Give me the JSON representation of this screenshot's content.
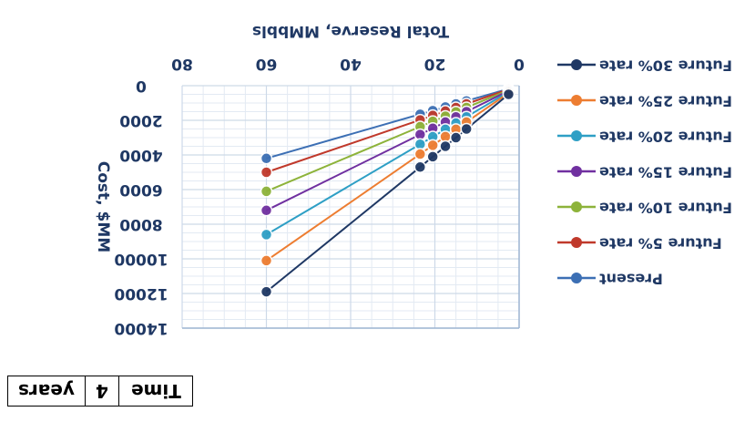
{
  "chart_data": {
    "type": "line",
    "orientation": "rotated 180 degrees",
    "xlabel": "Total Reserve, MMbbls",
    "ylabel": "Cost, $MM",
    "xlim": [
      0,
      80
    ],
    "ylim": [
      0,
      14000
    ],
    "x_ticks": [
      "0",
      "20",
      "40",
      "60",
      "80"
    ],
    "y_ticks": [
      "0",
      "2000",
      "4000",
      "6000",
      "8000",
      "10000",
      "12000",
      "14000"
    ],
    "grid": true,
    "legend_position": "right",
    "series": [
      {
        "name": "Future 30% rate",
        "color": "#1f3864",
        "points": [
          [
            2.5,
            500
          ],
          [
            12.5,
            2500
          ],
          [
            15,
            3000
          ],
          [
            17.5,
            3500
          ],
          [
            20.5,
            4100
          ],
          [
            23.5,
            4700
          ],
          [
            60,
            11900
          ]
        ]
      },
      {
        "name": "Future 25% rate",
        "color": "#ed7d31",
        "points": [
          [
            2.5,
            420
          ],
          [
            12.5,
            2100
          ],
          [
            15,
            2520
          ],
          [
            17.5,
            2940
          ],
          [
            20.5,
            3440
          ],
          [
            23.5,
            3950
          ],
          [
            60,
            10100
          ]
        ]
      },
      {
        "name": "Future 20% rate",
        "color": "#2e9fc5",
        "points": [
          [
            2.5,
            360
          ],
          [
            12.5,
            1800
          ],
          [
            15,
            2160
          ],
          [
            17.5,
            2520
          ],
          [
            20.5,
            2950
          ],
          [
            23.5,
            3380
          ],
          [
            60,
            8600
          ]
        ]
      },
      {
        "name": "Future 15% rate",
        "color": "#7030a0",
        "points": [
          [
            2.5,
            300
          ],
          [
            12.5,
            1500
          ],
          [
            15,
            1800
          ],
          [
            17.5,
            2100
          ],
          [
            20.5,
            2460
          ],
          [
            23.5,
            2820
          ],
          [
            60,
            7200
          ]
        ]
      },
      {
        "name": "Future 10% rate",
        "color": "#8db33a",
        "points": [
          [
            2.5,
            260
          ],
          [
            12.5,
            1260
          ],
          [
            15,
            1510
          ],
          [
            17.5,
            1760
          ],
          [
            20.5,
            2060
          ],
          [
            23.5,
            2370
          ],
          [
            60,
            6100
          ]
        ]
      },
      {
        "name": "Future 5% rate",
        "color": "#c0392b",
        "points": [
          [
            2.5,
            210
          ],
          [
            12.5,
            1050
          ],
          [
            15,
            1260
          ],
          [
            17.5,
            1470
          ],
          [
            20.5,
            1720
          ],
          [
            23.5,
            1980
          ],
          [
            60,
            5000
          ]
        ]
      },
      {
        "name": "Present",
        "color": "#3c6fb4",
        "points": [
          [
            2.5,
            180
          ],
          [
            12.5,
            880
          ],
          [
            15,
            1050
          ],
          [
            17.5,
            1230
          ],
          [
            20.5,
            1440
          ],
          [
            23.5,
            1650
          ],
          [
            60,
            4200
          ]
        ]
      }
    ]
  },
  "time_table": {
    "label": "Time",
    "value": "4",
    "unit": "years"
  }
}
